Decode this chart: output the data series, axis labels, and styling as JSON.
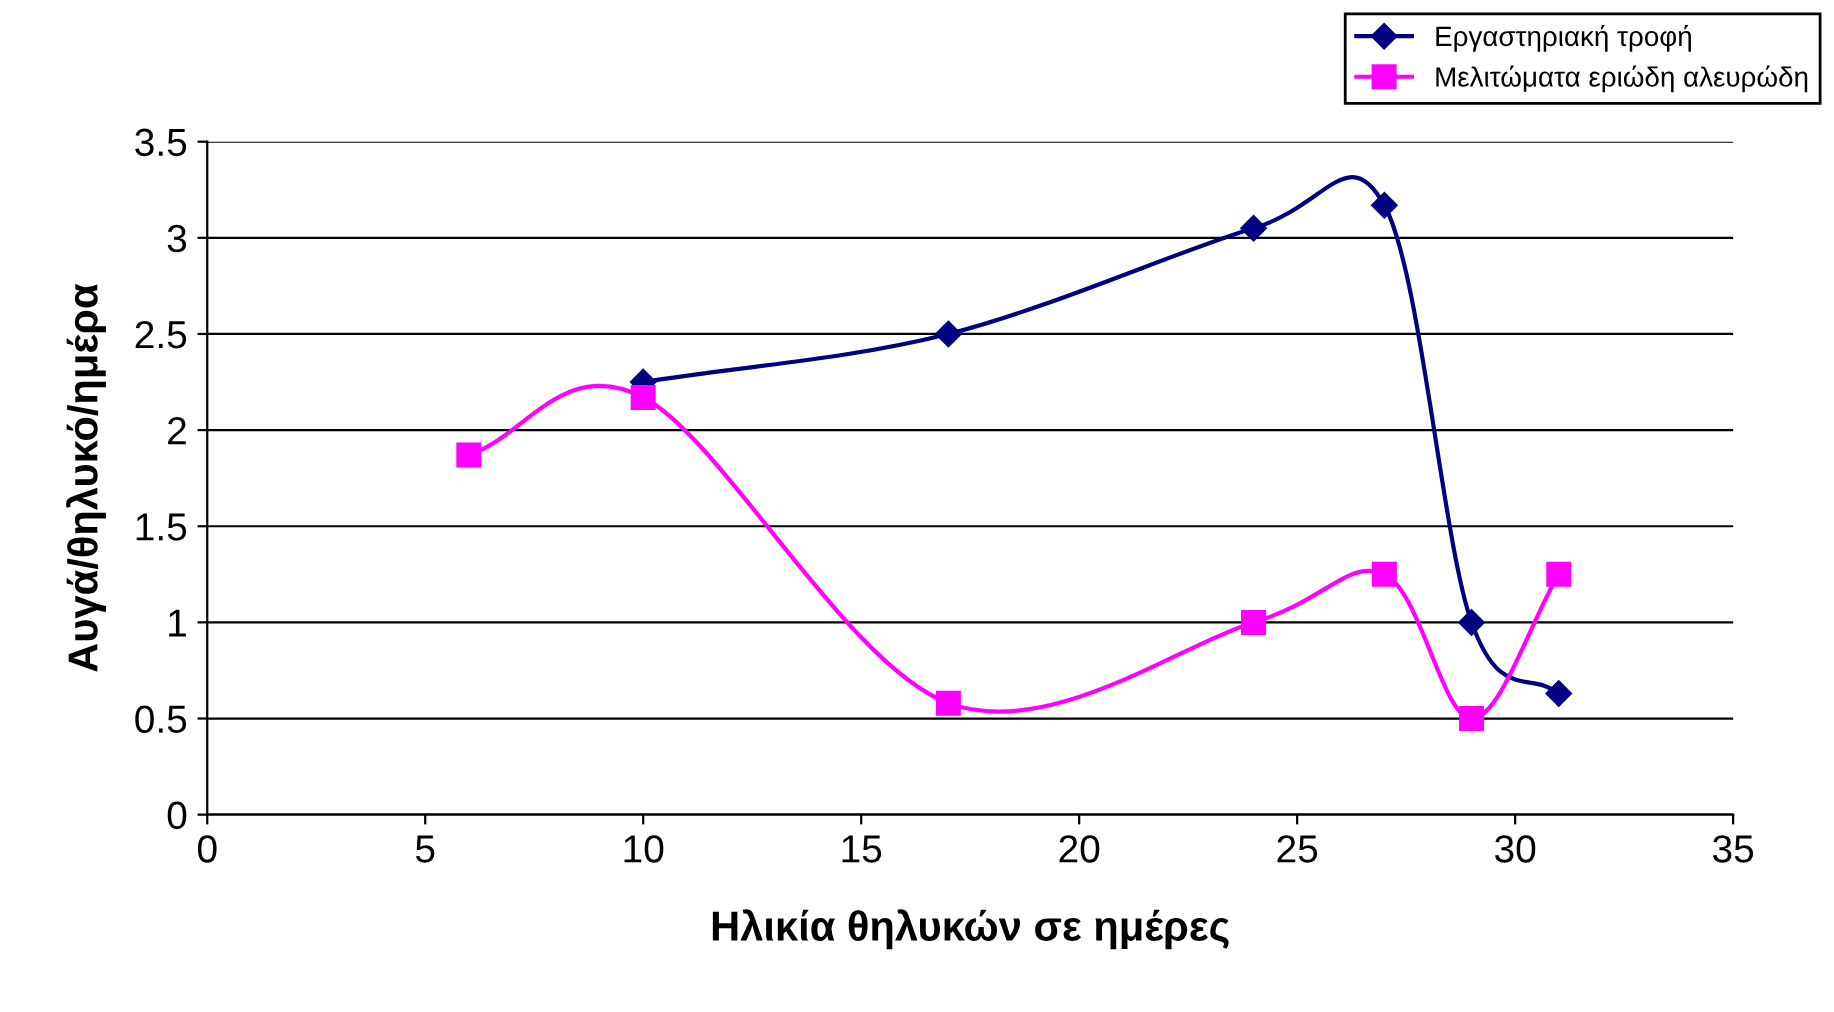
{
  "chart_data": {
    "type": "line",
    "xlabel": "Ηλικία θηλυκών σε ημέρες",
    "ylabel": "Αυγά/θηλυκό/ημέρα",
    "xlim": [
      0,
      35
    ],
    "xticks": [
      0,
      5,
      10,
      15,
      20,
      25,
      30,
      35
    ],
    "ylim": [
      0,
      3.5
    ],
    "yticks": [
      0,
      0.5,
      1,
      1.5,
      2,
      2.5,
      3,
      3.5
    ],
    "grid": "y",
    "legend": "top right",
    "line_style": "solid",
    "series": [
      {
        "name": "Εργαστηριακή τροφή",
        "color": "#000080",
        "marker": "diamond",
        "x": [
          10,
          17,
          24,
          27,
          29,
          31
        ],
        "values": [
          2.25,
          2.5,
          3.05,
          3.17,
          1.0,
          0.63
        ]
      },
      {
        "name": "Μελιτώματα εριώδη αλευρώδη",
        "color": "#ff00ff",
        "marker": "square",
        "x": [
          6,
          10,
          17,
          24,
          27,
          29,
          31
        ],
        "values": [
          1.87,
          2.17,
          0.58,
          1.0,
          1.25,
          0.5,
          1.25
        ]
      }
    ]
  }
}
